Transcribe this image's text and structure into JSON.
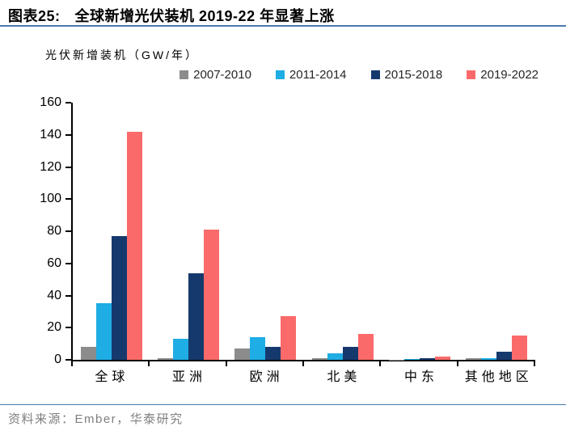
{
  "title": {
    "prefix": "图表25:",
    "text": "全球新增光伏装机 2019-22 年显著上涨"
  },
  "source": {
    "text": "资料来源：Ember，华泰研究"
  },
  "colors": {
    "header_rule": "#4B79AE",
    "footer_rule": "#4B79AE",
    "axis": "#000000",
    "source_text": "#7F7F7F",
    "legend_text": "#262626",
    "series_2007_2010": "#8C8C8C",
    "series_2011_2014": "#1EADE4",
    "series_2015_2018": "#16396D",
    "series_2019_2022": "#FA6A6A"
  },
  "chart_data": {
    "type": "bar",
    "title": "全球新增光伏装机 2019-22 年显著上涨",
    "ylabel": "光伏新增装机（GW/年）",
    "xlabel": "",
    "categories": [
      "全球",
      "亚洲",
      "欧洲",
      "北美",
      "中东",
      "其他地区"
    ],
    "series": [
      {
        "name": "2007-2010",
        "color": "#8C8C8C",
        "values": [
          8,
          1,
          7,
          1,
          0.2,
          1
        ]
      },
      {
        "name": "2011-2014",
        "color": "#1EADE4",
        "values": [
          35,
          13,
          14,
          4,
          0.5,
          1
        ]
      },
      {
        "name": "2015-2018",
        "color": "#16396D",
        "values": [
          77,
          54,
          8,
          8,
          1,
          5
        ]
      },
      {
        "name": "2019-2022",
        "color": "#FA6A6A",
        "values": [
          142,
          81,
          27,
          16,
          2,
          15
        ]
      }
    ],
    "ylim": [
      0,
      160
    ],
    "ytick_step": 20,
    "legend_position": "top",
    "grid": false
  }
}
